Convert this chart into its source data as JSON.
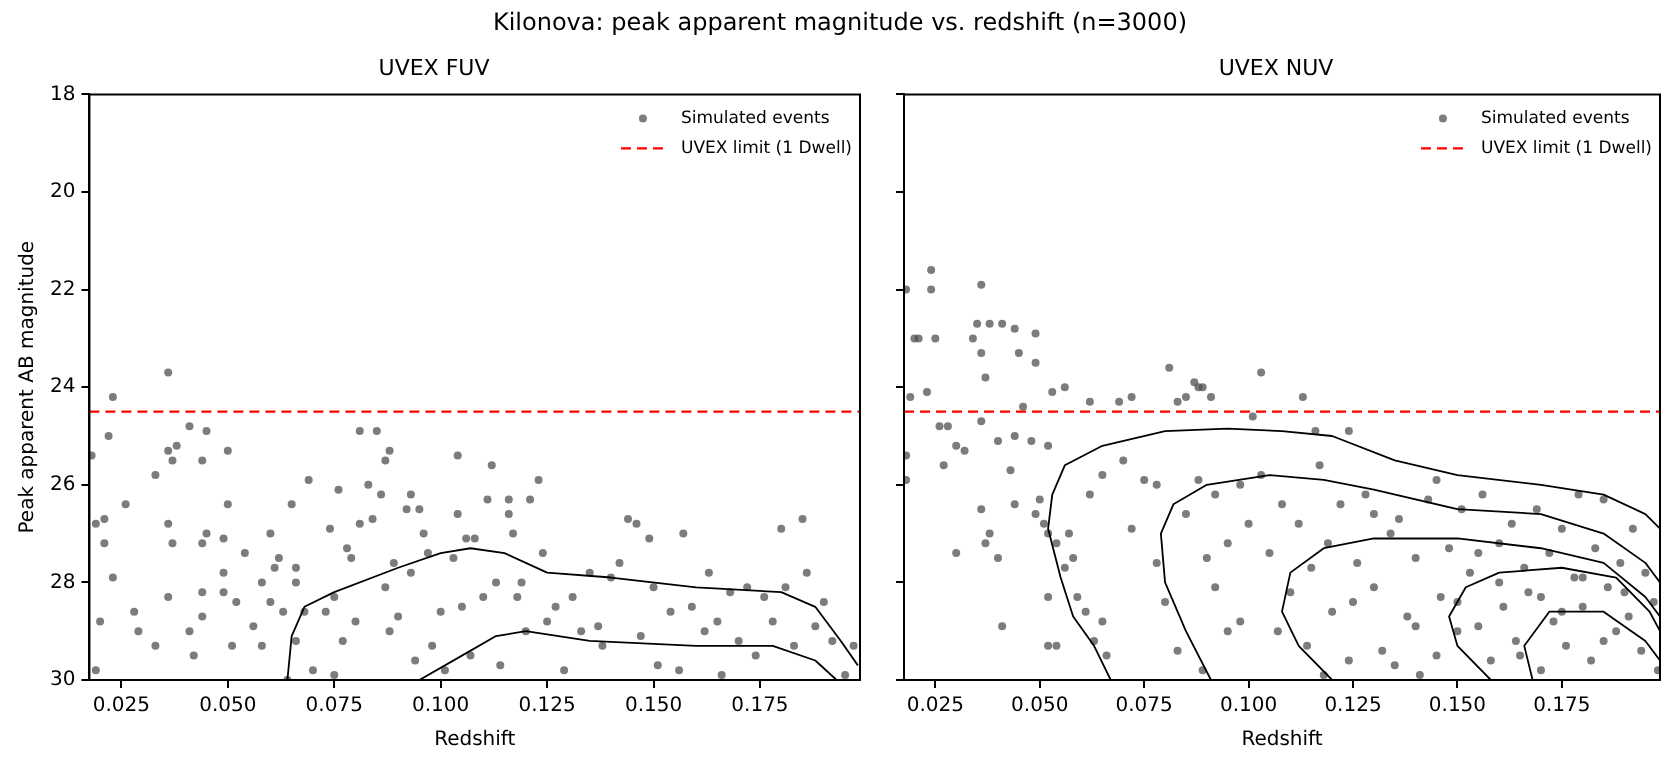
{
  "chart_data": [
    {
      "type": "scatter",
      "title": "Kilonova: peak apparent magnitude vs. redshift (n=3000)",
      "subtitle": "UVEX FUV",
      "xlabel": "Redshift",
      "ylabel": "Peak apparent AB magnitude",
      "xlim": [
        0.0175,
        0.1985
      ],
      "xticks": [
        0.025,
        {
          "value": 0.05,
          "label": "0.050"
        },
        0.075,
        {
          "value": 0.1,
          "label": "0.100"
        },
        0.125,
        {
          "value": 0.15,
          "label": "0.150"
        },
        0.175
      ],
      "ylim": [
        30,
        18
      ],
      "yticks": [
        18,
        20,
        22,
        24,
        26,
        28,
        30
      ],
      "grid": false,
      "legend": "top right",
      "marker": "circle",
      "ref_lines": [
        {
          "axis": "y",
          "value": 24.5,
          "label": "UVEX limit (1 Dwell)",
          "color": "#ff0000",
          "line_style": "dashed"
        }
      ],
      "series": [
        {
          "name": "Simulated events",
          "color": "#4d4d4d",
          "x": [
            0.036,
            0.023,
            0.022,
            0.018,
            0.036,
            0.038,
            0.037,
            0.041,
            0.045,
            0.044,
            0.05,
            0.033,
            0.026,
            0.019,
            0.021,
            0.021,
            0.036,
            0.037,
            0.023,
            0.02,
            0.028,
            0.029,
            0.033,
            0.019,
            0.036,
            0.044,
            0.044,
            0.041,
            0.042,
            0.045,
            0.044,
            0.049,
            0.049,
            0.049,
            0.05,
            0.052,
            0.051,
            0.054,
            0.056,
            0.058,
            0.058,
            0.06,
            0.06,
            0.061,
            0.062,
            0.063,
            0.064,
            0.065,
            0.066,
            0.066,
            0.066,
            0.068,
            0.069,
            0.07,
            0.073,
            0.074,
            0.075,
            0.076,
            0.075,
            0.077,
            0.078,
            0.079,
            0.08,
            0.081,
            0.081,
            0.083,
            0.084,
            0.085,
            0.086,
            0.087,
            0.087,
            0.088,
            0.088,
            0.089,
            0.09,
            0.092,
            0.093,
            0.093,
            0.094,
            0.095,
            0.096,
            0.097,
            0.098,
            0.1,
            0.101,
            0.103,
            0.104,
            0.104,
            0.105,
            0.106,
            0.107,
            0.108,
            0.11,
            0.111,
            0.112,
            0.113,
            0.114,
            0.116,
            0.116,
            0.117,
            0.118,
            0.119,
            0.12,
            0.121,
            0.123,
            0.124,
            0.125,
            0.127,
            0.129,
            0.131,
            0.133,
            0.135,
            0.137,
            0.138,
            0.14,
            0.142,
            0.144,
            0.146,
            0.147,
            0.149,
            0.15,
            0.151,
            0.154,
            0.156,
            0.157,
            0.159,
            0.162,
            0.163,
            0.165,
            0.166,
            0.168,
            0.17,
            0.172,
            0.174,
            0.176,
            0.178,
            0.18,
            0.181,
            0.183,
            0.185,
            0.186,
            0.188,
            0.19,
            0.192,
            0.195,
            0.197
          ],
          "values": [
            23.7,
            24.2,
            25.0,
            25.4,
            25.3,
            25.2,
            25.5,
            24.8,
            24.9,
            25.5,
            25.3,
            25.8,
            26.4,
            26.8,
            26.7,
            27.2,
            26.8,
            27.2,
            27.9,
            28.8,
            28.6,
            29.0,
            29.3,
            29.8,
            28.3,
            28.2,
            28.7,
            29.0,
            29.5,
            27.0,
            27.2,
            27.1,
            27.8,
            28.2,
            26.4,
            28.4,
            29.3,
            27.4,
            28.9,
            28.0,
            29.3,
            27.0,
            28.4,
            27.7,
            27.5,
            28.6,
            30.0,
            26.4,
            27.7,
            28.0,
            29.2,
            28.6,
            25.9,
            29.8,
            28.6,
            26.9,
            28.3,
            26.1,
            29.9,
            29.2,
            27.3,
            27.5,
            28.8,
            24.9,
            26.8,
            26.0,
            26.7,
            24.9,
            26.2,
            25.5,
            28.1,
            25.3,
            29.0,
            27.6,
            28.7,
            26.5,
            26.2,
            27.8,
            29.6,
            26.5,
            27.0,
            27.4,
            29.3,
            28.6,
            29.8,
            27.5,
            25.4,
            26.6,
            28.5,
            27.1,
            29.5,
            27.1,
            28.3,
            26.3,
            25.6,
            28.0,
            29.7,
            26.3,
            26.6,
            27.0,
            28.3,
            28.0,
            29.0,
            26.3,
            25.9,
            27.4,
            28.8,
            28.5,
            29.8,
            28.3,
            29.0,
            27.8,
            28.9,
            29.3,
            27.9,
            27.6,
            26.7,
            26.8,
            29.1,
            27.1,
            28.1,
            29.7,
            28.6,
            29.8,
            27.0,
            28.5,
            29.0,
            27.8,
            28.8,
            29.9,
            28.2,
            29.2,
            28.1,
            29.5,
            28.3,
            28.8,
            26.9,
            28.1,
            29.3,
            26.7,
            27.8,
            28.9,
            28.4,
            29.2,
            29.9,
            29.3
          ]
        },
        {
          "type": "line",
          "marker": "none",
          "color": "#000000",
          "x": [
            0.064,
            0.065,
            0.068,
            0.075,
            0.09,
            0.1,
            0.107,
            0.115,
            0.125,
            0.14,
            0.16,
            0.18,
            0.188,
            0.194,
            0.198
          ],
          "values": [
            30,
            29.1,
            28.5,
            28.2,
            27.7,
            27.4,
            27.3,
            27.4,
            27.8,
            27.9,
            28.1,
            28.2,
            28.5,
            29.2,
            29.7
          ]
        },
        {
          "type": "line",
          "marker": "none",
          "color": "#000000",
          "x": [
            0.095,
            0.105,
            0.113,
            0.12,
            0.135,
            0.16,
            0.178,
            0.188,
            0.193
          ],
          "values": [
            30,
            29.5,
            29.1,
            29.0,
            29.2,
            29.3,
            29.3,
            29.6,
            30
          ]
        }
      ]
    },
    {
      "type": "scatter",
      "subtitle": "UVEX NUV",
      "xlabel": "Redshift",
      "xlim": [
        0.0175,
        0.1985
      ],
      "xticks": [
        0.025,
        {
          "value": 0.05,
          "label": "0.050"
        },
        0.075,
        {
          "value": 0.1,
          "label": "0.100"
        },
        0.125,
        {
          "value": 0.15,
          "label": "0.150"
        },
        0.175
      ],
      "ylim": [
        30,
        18
      ],
      "yticks": [
        18,
        20,
        22,
        24,
        26,
        28,
        30
      ],
      "tick_labels": "x",
      "grid": false,
      "legend": "top right",
      "marker": "circle",
      "ref_lines": [
        {
          "axis": "y",
          "value": 24.5,
          "label": "UVEX limit (1 Dwell)",
          "color": "#ff0000",
          "line_style": "dashed"
        }
      ],
      "series": [
        {
          "name": "Simulated events",
          "color": "#4d4d4d",
          "x": [
            0.024,
            0.024,
            0.018,
            0.036,
            0.02,
            0.021,
            0.025,
            0.034,
            0.035,
            0.038,
            0.041,
            0.044,
            0.045,
            0.049,
            0.049,
            0.036,
            0.037,
            0.023,
            0.019,
            0.046,
            0.053,
            0.056,
            0.062,
            0.069,
            0.072,
            0.081,
            0.083,
            0.085,
            0.087,
            0.088,
            0.089,
            0.091,
            0.103,
            0.101,
            0.113,
            0.116,
            0.124,
            0.018,
            0.026,
            0.028,
            0.03,
            0.032,
            0.018,
            0.027,
            0.036,
            0.04,
            0.044,
            0.043,
            0.048,
            0.052,
            0.05,
            0.051,
            0.044,
            0.036,
            0.038,
            0.037,
            0.03,
            0.04,
            0.041,
            0.049,
            0.052,
            0.054,
            0.057,
            0.058,
            0.052,
            0.052,
            0.054,
            0.056,
            0.059,
            0.061,
            0.063,
            0.065,
            0.066,
            0.062,
            0.065,
            0.07,
            0.075,
            0.078,
            0.072,
            0.078,
            0.08,
            0.085,
            0.088,
            0.092,
            0.09,
            0.092,
            0.095,
            0.083,
            0.089,
            0.098,
            0.1,
            0.103,
            0.105,
            0.108,
            0.11,
            0.112,
            0.114,
            0.117,
            0.119,
            0.12,
            0.122,
            0.124,
            0.126,
            0.128,
            0.13,
            0.132,
            0.134,
            0.136,
            0.138,
            0.14,
            0.141,
            0.143,
            0.145,
            0.146,
            0.148,
            0.15,
            0.151,
            0.153,
            0.155,
            0.156,
            0.158,
            0.16,
            0.161,
            0.163,
            0.164,
            0.166,
            0.167,
            0.169,
            0.17,
            0.172,
            0.173,
            0.175,
            0.176,
            0.178,
            0.179,
            0.18,
            0.182,
            0.183,
            0.185,
            0.186,
            0.188,
            0.189,
            0.191,
            0.192,
            0.194,
            0.195,
            0.197,
            0.198,
            0.15,
            0.16,
            0.17,
            0.18,
            0.165,
            0.175,
            0.185,
            0.155,
            0.145,
            0.19,
            0.14,
            0.135,
            0.125,
            0.115,
            0.095,
            0.098,
            0.107,
            0.118,
            0.13
          ],
          "values": [
            21.6,
            22.0,
            22.0,
            21.9,
            23.0,
            23.0,
            23.0,
            23.0,
            22.7,
            22.7,
            22.7,
            22.8,
            23.3,
            22.9,
            23.5,
            23.3,
            23.8,
            24.1,
            24.2,
            24.4,
            24.1,
            24.0,
            24.3,
            24.3,
            24.2,
            23.6,
            24.3,
            24.2,
            23.9,
            24.0,
            24.0,
            24.2,
            23.7,
            24.6,
            24.2,
            24.9,
            24.9,
            25.4,
            24.8,
            24.8,
            25.2,
            25.3,
            25.9,
            25.6,
            24.7,
            25.1,
            25.0,
            25.7,
            25.1,
            25.2,
            26.3,
            26.8,
            26.4,
            26.5,
            27.0,
            27.2,
            27.4,
            27.5,
            28.9,
            26.6,
            27.0,
            27.2,
            27.0,
            27.5,
            28.3,
            29.3,
            29.3,
            27.7,
            28.3,
            28.6,
            29.2,
            28.8,
            29.5,
            26.2,
            25.8,
            25.5,
            25.9,
            26.0,
            26.9,
            27.6,
            28.4,
            26.6,
            25.9,
            26.2,
            27.5,
            28.1,
            29.0,
            29.4,
            29.8,
            26.0,
            26.8,
            25.8,
            27.4,
            26.4,
            28.2,
            26.8,
            29.3,
            25.6,
            27.2,
            28.6,
            26.4,
            29.6,
            27.6,
            26.2,
            28.1,
            29.4,
            27.0,
            26.7,
            28.7,
            27.5,
            29.9,
            26.3,
            25.9,
            28.3,
            27.3,
            29.0,
            26.5,
            27.8,
            28.9,
            26.2,
            29.6,
            27.2,
            28.5,
            26.8,
            29.2,
            27.7,
            28.2,
            26.5,
            29.8,
            27.4,
            28.8,
            26.9,
            29.3,
            27.9,
            26.2,
            28.5,
            29.6,
            27.3,
            26.3,
            28.1,
            29.0,
            27.6,
            28.7,
            26.9,
            29.4,
            27.8,
            28.4,
            29.8,
            28.4,
            28.0,
            28.3,
            27.9,
            29.5,
            28.6,
            29.2,
            27.4,
            29.5,
            28.2,
            28.9,
            29.7,
            28.4,
            27.7,
            27.2,
            28.8,
            29.0,
            29.9,
            26.6
          ]
        },
        {
          "type": "line",
          "marker": "none",
          "color": "#000000",
          "x": [
            0.067,
            0.063,
            0.058,
            0.055,
            0.052,
            0.053,
            0.056,
            0.065,
            0.08,
            0.095,
            0.108,
            0.12,
            0.135,
            0.15,
            0.17,
            0.185,
            0.195,
            0.1985
          ],
          "values": [
            30,
            29.3,
            28.7,
            27.9,
            26.9,
            26.2,
            25.6,
            25.2,
            24.9,
            24.85,
            24.9,
            25.0,
            25.5,
            25.8,
            26.0,
            26.2,
            26.6,
            26.9
          ]
        },
        {
          "type": "line",
          "marker": "none",
          "color": "#000000",
          "x": [
            0.091,
            0.085,
            0.08,
            0.079,
            0.082,
            0.09,
            0.105,
            0.118,
            0.13,
            0.15,
            0.17,
            0.185,
            0.195,
            0.1985
          ],
          "values": [
            30,
            29.0,
            28.0,
            27.0,
            26.4,
            26.0,
            25.8,
            25.9,
            26.1,
            26.5,
            26.6,
            27.0,
            27.6,
            28.0
          ]
        },
        {
          "type": "line",
          "marker": "none",
          "color": "#000000",
          "x": [
            0.12,
            0.112,
            0.108,
            0.11,
            0.118,
            0.13,
            0.15,
            0.17,
            0.185,
            0.195,
            0.1985
          ],
          "values": [
            30,
            29.3,
            28.6,
            27.8,
            27.3,
            27.1,
            27.1,
            27.3,
            27.6,
            28.3,
            28.7
          ]
        },
        {
          "type": "line",
          "marker": "none",
          "color": "#000000",
          "x": [
            0.158,
            0.15,
            0.148,
            0.152,
            0.16,
            0.175,
            0.188,
            0.196,
            0.1985
          ],
          "values": [
            30,
            29.3,
            28.7,
            28.1,
            27.8,
            27.7,
            27.9,
            28.6,
            29.0
          ]
        },
        {
          "type": "line",
          "marker": "none",
          "color": "#000000",
          "x": [
            0.168,
            0.166,
            0.172,
            0.185,
            0.195,
            0.1985
          ],
          "values": [
            30,
            29.3,
            28.6,
            28.6,
            29.2,
            29.6
          ]
        }
      ]
    }
  ]
}
